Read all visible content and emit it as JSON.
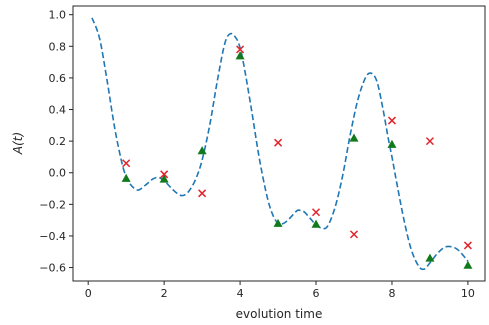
{
  "chart_data": {
    "type": "line",
    "xlabel": "evolution time",
    "ylabel": "A(t)",
    "xlim": [
      -0.4,
      10.45
    ],
    "ylim": [
      -0.685,
      1.055
    ],
    "x_ticks": [
      0,
      2,
      4,
      6,
      8,
      10
    ],
    "y_ticks": [
      -0.6,
      -0.4,
      -0.2,
      0.0,
      0.2,
      0.4,
      0.6,
      0.8,
      1.0
    ],
    "x_tick_labels": [
      "0",
      "2",
      "4",
      "6",
      "8",
      "10"
    ],
    "y_tick_labels": [
      "−0.6",
      "−0.4",
      "−0.2",
      "0.0",
      "0.2",
      "0.4",
      "0.6",
      "0.8",
      "1.0"
    ],
    "grid": false,
    "legend": "none",
    "series": [
      {
        "kind": "line",
        "style": "dashed",
        "color": "#1f77b4",
        "x": [
          0.1,
          0.3,
          0.5,
          0.7,
          0.9,
          1.0,
          1.1,
          1.3,
          1.5,
          1.7,
          1.85,
          2.0,
          2.2,
          2.4,
          2.55,
          2.7,
          2.85,
          3.0,
          3.2,
          3.4,
          3.6,
          3.75,
          3.9,
          4.0,
          4.1,
          4.3,
          4.5,
          4.7,
          4.85,
          5.0,
          5.15,
          5.3,
          5.5,
          5.6,
          5.7,
          5.85,
          6.0,
          6.15,
          6.3,
          6.5,
          6.7,
          6.9,
          7.1,
          7.3,
          7.45,
          7.6,
          7.75,
          7.9,
          8.0,
          8.1,
          8.3,
          8.5,
          8.7,
          8.85,
          9.0,
          9.2,
          9.4,
          9.6,
          9.75,
          9.9,
          10.0
        ],
        "y": [
          0.98,
          0.85,
          0.58,
          0.28,
          0.05,
          -0.02,
          -0.07,
          -0.11,
          -0.08,
          -0.04,
          -0.03,
          -0.05,
          -0.1,
          -0.14,
          -0.14,
          -0.1,
          -0.03,
          0.08,
          0.3,
          0.58,
          0.82,
          0.88,
          0.85,
          0.79,
          0.68,
          0.4,
          0.1,
          -0.14,
          -0.26,
          -0.32,
          -0.32,
          -0.29,
          -0.24,
          -0.24,
          -0.25,
          -0.29,
          -0.33,
          -0.35,
          -0.34,
          -0.22,
          -0.02,
          0.24,
          0.46,
          0.6,
          0.63,
          0.58,
          0.42,
          0.22,
          0.1,
          -0.03,
          -0.28,
          -0.48,
          -0.59,
          -0.61,
          -0.57,
          -0.51,
          -0.47,
          -0.47,
          -0.49,
          -0.53,
          -0.56
        ]
      },
      {
        "kind": "scatter",
        "marker": "triangle",
        "color": "#117a1b",
        "x": [
          1,
          2,
          3,
          4,
          5,
          6,
          7,
          8,
          9,
          10
        ],
        "y": [
          -0.035,
          -0.04,
          0.14,
          0.74,
          -0.32,
          -0.325,
          0.22,
          0.18,
          -0.54,
          -0.585
        ]
      },
      {
        "kind": "scatter",
        "marker": "x",
        "color": "#e3242b",
        "x": [
          1,
          2,
          3,
          4,
          5,
          6,
          7,
          8,
          9,
          10
        ],
        "y": [
          0.06,
          -0.01,
          -0.13,
          0.78,
          0.19,
          -0.25,
          -0.39,
          0.33,
          0.2,
          -0.46
        ]
      }
    ]
  }
}
